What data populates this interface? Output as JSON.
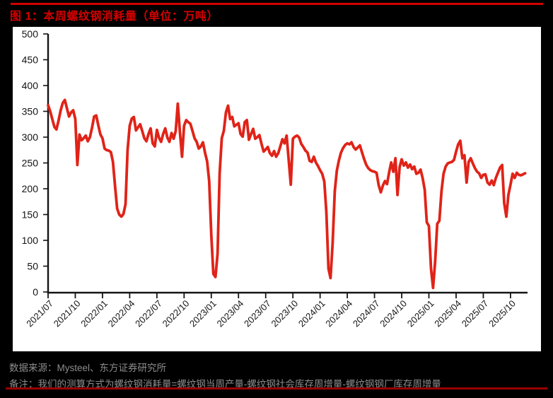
{
  "header": {
    "title": "图 1：本周螺纹钢消耗量（单位：万吨）"
  },
  "footer": {
    "source": "数据来源：Mysteel、东方证券研究所",
    "note": "备注：我们的测算方式为螺纹钢消耗量=螺纹钢当周产量-螺纹钢社会库存周增量-螺纹钢钢厂库存周增量"
  },
  "colors": {
    "page_bg": "#000000",
    "panel_bg": "#ffffff",
    "accent_red": "#d40000",
    "bottom_rule_red": "#9a0000",
    "line_red": "#e02318",
    "axis_black": "#141414",
    "text_gray": "#8c8c8c"
  },
  "chart_data": {
    "type": "line",
    "title": "本周螺纹钢消耗量",
    "unit": "万吨",
    "xlabel": "",
    "ylabel": "",
    "ylim": [
      0,
      500
    ],
    "y_ticks": [
      0,
      50,
      100,
      150,
      200,
      250,
      300,
      350,
      400,
      450,
      500
    ],
    "grid": false,
    "legend": "none",
    "line_color": "#e02318",
    "x_tick_labels": [
      "2021/07",
      "2021/10",
      "2022/01",
      "2022/04",
      "2022/07",
      "2022/10",
      "2023/01",
      "2023/04",
      "2023/07",
      "2023/10",
      "2024/01",
      "2024/04",
      "2024/07",
      "2024/10",
      "2025/01",
      "2025/04",
      "2025/07",
      "2025/10"
    ],
    "weeks_per_tick": 13,
    "x_unit": "week",
    "values": [
      362,
      350,
      335,
      320,
      315,
      332,
      352,
      366,
      372,
      356,
      340,
      348,
      352,
      335,
      246,
      305,
      294,
      298,
      303,
      292,
      300,
      318,
      340,
      342,
      323,
      305,
      298,
      278,
      275,
      274,
      271,
      252,
      205,
      162,
      150,
      146,
      151,
      170,
      275,
      322,
      336,
      339,
      313,
      319,
      325,
      312,
      298,
      292,
      306,
      317,
      288,
      282,
      314,
      299,
      291,
      306,
      317,
      299,
      291,
      308,
      297,
      312,
      365,
      310,
      262,
      322,
      333,
      329,
      326,
      312,
      298,
      291,
      278,
      282,
      290,
      270,
      253,
      215,
      110,
      35,
      29,
      75,
      230,
      298,
      312,
      348,
      361,
      335,
      339,
      321,
      324,
      327,
      306,
      301,
      329,
      333,
      295,
      306,
      316,
      297,
      300,
      304,
      287,
      272,
      276,
      281,
      269,
      264,
      273,
      262,
      269,
      282,
      296,
      288,
      303,
      255,
      208,
      297,
      301,
      303,
      299,
      287,
      281,
      274,
      270,
      254,
      252,
      262,
      251,
      244,
      236,
      229,
      214,
      155,
      45,
      27,
      95,
      195,
      235,
      255,
      270,
      279,
      285,
      288,
      286,
      290,
      281,
      276,
      280,
      284,
      271,
      258,
      247,
      240,
      236,
      234,
      233,
      231,
      207,
      193,
      206,
      215,
      209,
      232,
      251,
      233,
      259,
      188,
      242,
      257,
      245,
      251,
      241,
      247,
      238,
      243,
      229,
      231,
      237,
      221,
      198,
      135,
      128,
      45,
      8,
      60,
      132,
      138,
      195,
      229,
      243,
      249,
      251,
      252,
      256,
      272,
      286,
      293,
      259,
      265,
      212,
      252,
      259,
      249,
      240,
      233,
      230,
      221,
      227,
      228,
      212,
      208,
      216,
      207,
      221,
      231,
      241,
      246,
      172,
      146,
      188,
      208,
      229,
      221,
      231,
      227,
      226,
      228,
      230
    ]
  }
}
